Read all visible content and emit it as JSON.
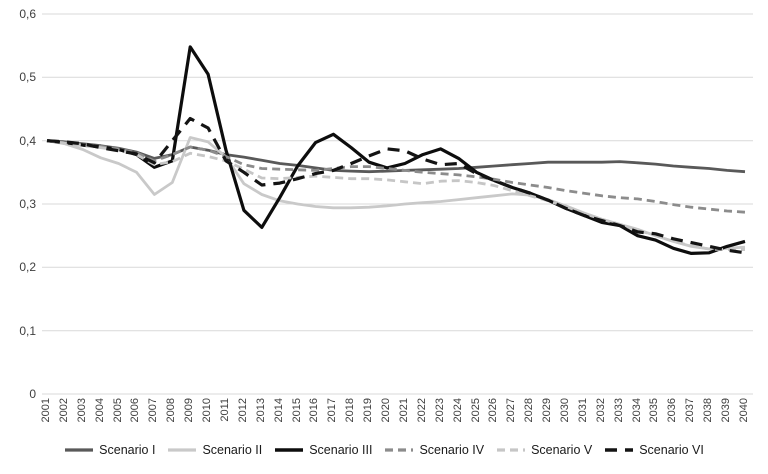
{
  "chart_data": {
    "type": "line",
    "title": "",
    "xlabel": "",
    "ylabel": "",
    "ylim": [
      0,
      0.6
    ],
    "grid": true,
    "legend_position": "bottom",
    "gridline_color": "#d9d9d9",
    "tick_label_color": "#3f3f3f",
    "x": [
      2001,
      2002,
      2003,
      2004,
      2005,
      2006,
      2007,
      2008,
      2009,
      2010,
      2011,
      2012,
      2013,
      2014,
      2015,
      2016,
      2017,
      2018,
      2019,
      2020,
      2021,
      2022,
      2023,
      2024,
      2025,
      2026,
      2027,
      2028,
      2029,
      2030,
      2031,
      2032,
      2033,
      2034,
      2035,
      2036,
      2037,
      2038,
      2039,
      2040
    ],
    "x_tick_labels": [
      "2001",
      "2002",
      "2003",
      "2004",
      "2005",
      "2006",
      "2007",
      "2008",
      "2009",
      "2010",
      "2011",
      "2012",
      "2013",
      "2014",
      "2015",
      "2016",
      "2017",
      "2018",
      "2019",
      "2020",
      "2021",
      "2022",
      "2023",
      "2024",
      "2025",
      "2026",
      "2027",
      "2028",
      "2029",
      "2030",
      "2031",
      "2032",
      "2033",
      "2034",
      "2035",
      "2036",
      "2037",
      "2038",
      "2039",
      "2040"
    ],
    "y_ticks": {
      "values": [
        0,
        0.1,
        0.2,
        0.3,
        0.4,
        0.5,
        0.6
      ],
      "labels": [
        "0",
        "0,1",
        "0,2",
        "0,3",
        "0,4",
        "0,5",
        "0,6"
      ]
    },
    "series": [
      {
        "name": "Scenario I",
        "color": "#595959",
        "style": "solid",
        "dash": "",
        "width": 2.8,
        "values": [
          0.4,
          0.398,
          0.395,
          0.392,
          0.388,
          0.382,
          0.372,
          0.378,
          0.39,
          0.385,
          0.378,
          0.374,
          0.369,
          0.364,
          0.361,
          0.357,
          0.353,
          0.352,
          0.351,
          0.352,
          0.353,
          0.354,
          0.355,
          0.356,
          0.358,
          0.36,
          0.362,
          0.364,
          0.366,
          0.366,
          0.366,
          0.366,
          0.367,
          0.365,
          0.363,
          0.36,
          0.358,
          0.356,
          0.353,
          0.351
        ]
      },
      {
        "name": "Scenario II",
        "color": "#c9c9c9",
        "style": "solid",
        "dash": "",
        "width": 2.8,
        "values": [
          0.4,
          0.395,
          0.386,
          0.373,
          0.364,
          0.35,
          0.315,
          0.334,
          0.405,
          0.398,
          0.374,
          0.332,
          0.315,
          0.305,
          0.3,
          0.296,
          0.294,
          0.294,
          0.295,
          0.297,
          0.3,
          0.302,
          0.304,
          0.307,
          0.31,
          0.313,
          0.316,
          0.314,
          0.307,
          0.297,
          0.286,
          0.276,
          0.268,
          0.26,
          0.25,
          0.241,
          0.233,
          0.229,
          0.23,
          0.232
        ]
      },
      {
        "name": "Scenario III",
        "color": "#0d0d0d",
        "style": "solid",
        "dash": "",
        "width": 3.2,
        "values": [
          0.4,
          0.397,
          0.393,
          0.39,
          0.386,
          0.378,
          0.358,
          0.368,
          0.548,
          0.505,
          0.385,
          0.29,
          0.263,
          0.31,
          0.36,
          0.397,
          0.41,
          0.389,
          0.366,
          0.357,
          0.364,
          0.378,
          0.387,
          0.372,
          0.35,
          0.337,
          0.326,
          0.317,
          0.306,
          0.293,
          0.282,
          0.271,
          0.266,
          0.25,
          0.243,
          0.23,
          0.222,
          0.223,
          0.233,
          0.241
        ]
      },
      {
        "name": "Scenario IV",
        "color": "#8c8c8c",
        "style": "dashed",
        "dash": "8 5",
        "width": 2.8,
        "values": [
          0.4,
          0.397,
          0.394,
          0.391,
          0.387,
          0.381,
          0.368,
          0.378,
          0.39,
          0.385,
          0.375,
          0.362,
          0.356,
          0.355,
          0.354,
          0.353,
          0.356,
          0.359,
          0.359,
          0.356,
          0.353,
          0.35,
          0.348,
          0.346,
          0.343,
          0.339,
          0.334,
          0.33,
          0.326,
          0.321,
          0.317,
          0.313,
          0.31,
          0.308,
          0.304,
          0.299,
          0.295,
          0.292,
          0.289,
          0.287
        ]
      },
      {
        "name": "Scenario V",
        "color": "#c6c6c6",
        "style": "dashed",
        "dash": "8 5",
        "width": 2.8,
        "values": [
          0.4,
          0.396,
          0.392,
          0.389,
          0.385,
          0.378,
          0.362,
          0.367,
          0.38,
          0.375,
          0.368,
          0.355,
          0.341,
          0.34,
          0.342,
          0.344,
          0.342,
          0.34,
          0.34,
          0.338,
          0.335,
          0.332,
          0.336,
          0.337,
          0.334,
          0.329,
          0.321,
          0.313,
          0.305,
          0.296,
          0.285,
          0.276,
          0.268,
          0.259,
          0.25,
          0.241,
          0.234,
          0.229,
          0.228,
          0.228
        ]
      },
      {
        "name": "Scenario VI",
        "color": "#141414",
        "style": "dashed",
        "dash": "12 8",
        "width": 3.2,
        "values": [
          0.4,
          0.398,
          0.395,
          0.389,
          0.384,
          0.379,
          0.365,
          0.4,
          0.435,
          0.42,
          0.368,
          0.35,
          0.33,
          0.333,
          0.34,
          0.348,
          0.353,
          0.364,
          0.376,
          0.387,
          0.384,
          0.371,
          0.362,
          0.364,
          0.348,
          0.337,
          0.326,
          0.317,
          0.306,
          0.293,
          0.282,
          0.274,
          0.266,
          0.256,
          0.253,
          0.245,
          0.239,
          0.233,
          0.227,
          0.223
        ]
      }
    ]
  }
}
